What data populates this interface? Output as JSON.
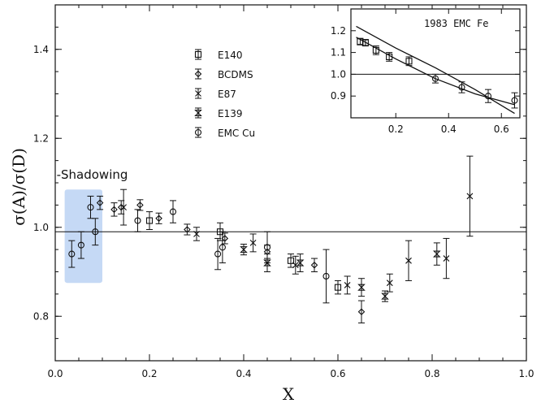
{
  "chart_data": [
    {
      "type": "scatter",
      "xlabel": "X",
      "ylabel": "σ(A)/σ(D)",
      "xlim": [
        0.0,
        1.0
      ],
      "ylim": [
        0.7,
        1.5
      ],
      "xticks": [
        "0.0",
        "0.2",
        "0.4",
        "0.6",
        "0.8",
        "1.0"
      ],
      "yticks": [
        "0.8",
        "1.0",
        "1.2",
        "1.4"
      ],
      "reference_line": 0.99,
      "legend_position": "top-center",
      "annotation": {
        "text": "-Shadowing",
        "x_range": [
          0.02,
          0.1
        ],
        "y_range": [
          0.875,
          1.085
        ],
        "color": "#c5d9f5"
      },
      "series": [
        {
          "name": "E140",
          "marker": "square",
          "points": [
            {
              "x": 0.2,
              "y": 1.015,
              "err": 0.02
            },
            {
              "x": 0.35,
              "y": 0.99,
              "err": 0.02
            },
            {
              "x": 0.5,
              "y": 0.925,
              "err": 0.015
            },
            {
              "x": 0.6,
              "y": 0.865,
              "err": 0.015
            }
          ]
        },
        {
          "name": "BCDMS",
          "marker": "diamond",
          "points": [
            {
              "x": 0.095,
              "y": 1.055,
              "err": 0.015
            },
            {
              "x": 0.125,
              "y": 1.04,
              "err": 0.015
            },
            {
              "x": 0.14,
              "y": 1.045,
              "err": 0.015
            },
            {
              "x": 0.18,
              "y": 1.05,
              "err": 0.012
            },
            {
              "x": 0.22,
              "y": 1.02,
              "err": 0.012
            },
            {
              "x": 0.28,
              "y": 0.995,
              "err": 0.012
            },
            {
              "x": 0.36,
              "y": 0.975,
              "err": 0.012
            },
            {
              "x": 0.45,
              "y": 0.945,
              "err": 0.015
            },
            {
              "x": 0.55,
              "y": 0.915,
              "err": 0.015
            },
            {
              "x": 0.65,
              "y": 0.81,
              "err": 0.025
            }
          ]
        },
        {
          "name": "E87",
          "marker": "x",
          "points": [
            {
              "x": 0.145,
              "y": 1.045,
              "err": 0.04
            },
            {
              "x": 0.3,
              "y": 0.985,
              "err": 0.015
            },
            {
              "x": 0.42,
              "y": 0.965,
              "err": 0.02
            },
            {
              "x": 0.51,
              "y": 0.915,
              "err": 0.02
            },
            {
              "x": 0.62,
              "y": 0.87,
              "err": 0.02
            },
            {
              "x": 0.71,
              "y": 0.875,
              "err": 0.02
            },
            {
              "x": 0.75,
              "y": 0.925,
              "err": 0.045
            },
            {
              "x": 0.83,
              "y": 0.93,
              "err": 0.045
            },
            {
              "x": 0.88,
              "y": 1.07,
              "err": 0.09
            }
          ]
        },
        {
          "name": "E139",
          "marker": "hourglass",
          "points": [
            {
              "x": 0.4,
              "y": 0.95,
              "err": 0.012
            },
            {
              "x": 0.45,
              "y": 0.92,
              "err": 0.02
            },
            {
              "x": 0.52,
              "y": 0.92,
              "err": 0.02
            },
            {
              "x": 0.65,
              "y": 0.865,
              "err": 0.02
            },
            {
              "x": 0.7,
              "y": 0.845,
              "err": 0.012
            },
            {
              "x": 0.81,
              "y": 0.94,
              "err": 0.025
            }
          ]
        },
        {
          "name": "EMC Cu",
          "marker": "circle",
          "points": [
            {
              "x": 0.035,
              "y": 0.94,
              "err": 0.03
            },
            {
              "x": 0.055,
              "y": 0.96,
              "err": 0.03
            },
            {
              "x": 0.075,
              "y": 1.045,
              "err": 0.025
            },
            {
              "x": 0.085,
              "y": 0.99,
              "err": 0.03
            },
            {
              "x": 0.175,
              "y": 1.015,
              "err": 0.025
            },
            {
              "x": 0.25,
              "y": 1.035,
              "err": 0.025
            },
            {
              "x": 0.345,
              "y": 0.94,
              "err": 0.035
            },
            {
              "x": 0.355,
              "y": 0.955,
              "err": 0.035
            },
            {
              "x": 0.45,
              "y": 0.955,
              "err": 0.035
            },
            {
              "x": 0.575,
              "y": 0.89,
              "err": 0.06
            }
          ]
        }
      ]
    },
    {
      "type": "scatter",
      "title": "1983 EMC Fe",
      "xlim": [
        0.03,
        0.67
      ],
      "ylim": [
        0.8,
        1.3
      ],
      "xticks": [
        "0.2",
        "0.4",
        "0.6"
      ],
      "yticks": [
        "0.9",
        "1.0",
        "1.1",
        "1.2"
      ],
      "reference_line": 1.0,
      "points": [
        {
          "x": 0.065,
          "y": 1.15,
          "err": 0.015,
          "marker": "square"
        },
        {
          "x": 0.085,
          "y": 1.145,
          "err": 0.015,
          "marker": "square"
        },
        {
          "x": 0.125,
          "y": 1.11,
          "err": 0.02,
          "marker": "square"
        },
        {
          "x": 0.175,
          "y": 1.08,
          "err": 0.02,
          "marker": "square"
        },
        {
          "x": 0.25,
          "y": 1.06,
          "err": 0.02,
          "marker": "square"
        },
        {
          "x": 0.35,
          "y": 0.98,
          "err": 0.02,
          "marker": "circle"
        },
        {
          "x": 0.45,
          "y": 0.94,
          "err": 0.025,
          "marker": "circle"
        },
        {
          "x": 0.55,
          "y": 0.9,
          "err": 0.03,
          "marker": "circle"
        },
        {
          "x": 0.65,
          "y": 0.88,
          "err": 0.035,
          "marker": "circle"
        }
      ],
      "band_curves": [
        {
          "x": [
            0.05,
            0.2,
            0.35,
            0.5,
            0.65
          ],
          "y": [
            1.22,
            1.12,
            1.03,
            0.93,
            0.82
          ]
        },
        {
          "x": [
            0.05,
            0.2,
            0.35,
            0.5,
            0.65
          ],
          "y": [
            1.17,
            1.07,
            0.98,
            0.91,
            0.86
          ]
        }
      ]
    }
  ]
}
